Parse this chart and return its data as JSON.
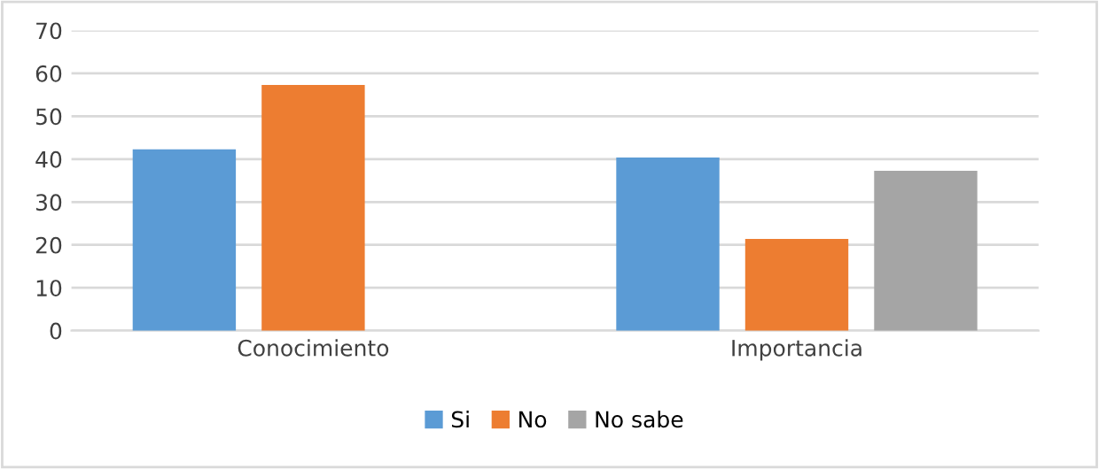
{
  "chart_data": {
    "type": "bar",
    "categories": [
      "Conocimiento",
      "Importancia"
    ],
    "series": [
      {
        "name": "Si",
        "color": "#5b9bd5",
        "values": [
          42.3,
          40.4
        ]
      },
      {
        "name": "No",
        "color": "#ed7d31",
        "values": [
          57.3,
          21.4
        ]
      },
      {
        "name": "No sabe",
        "color": "#a5a5a5",
        "values": [
          null,
          37.3
        ]
      }
    ],
    "ylim": [
      0,
      70
    ],
    "yticks": [
      0,
      10,
      20,
      30,
      40,
      50,
      60,
      70
    ],
    "grid": "y",
    "legend": "bottom"
  }
}
